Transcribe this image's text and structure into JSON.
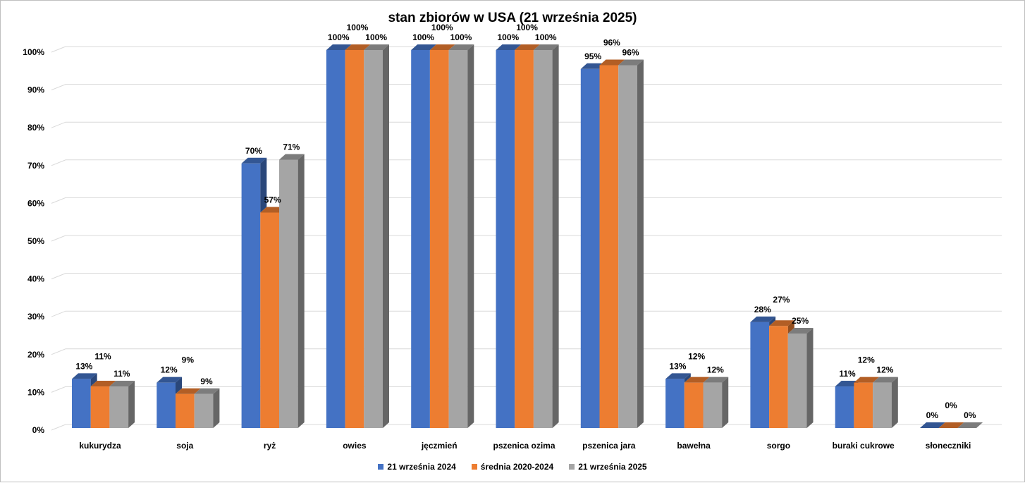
{
  "chart_data": {
    "type": "bar",
    "title": "stan zbiorów w USA (21 września 2025)",
    "categories": [
      "kukurydza",
      "soja",
      "ryż",
      "owies",
      "jęczmień",
      "pszenica ozima",
      "pszenica jara",
      "bawełna",
      "sorgo",
      "buraki cukrowe",
      "słoneczniki"
    ],
    "series": [
      {
        "name": "21 września 2024",
        "color": "#4472c4",
        "values": [
          13,
          12,
          70,
          100,
          100,
          100,
          95,
          13,
          28,
          11,
          0
        ]
      },
      {
        "name": "średnia 2020-2024",
        "color": "#ed7d31",
        "values": [
          11,
          9,
          57,
          100,
          100,
          100,
          96,
          12,
          27,
          12,
          0
        ]
      },
      {
        "name": "21 września 2025",
        "color": "#a5a5a5",
        "values": [
          11,
          9,
          71,
          100,
          100,
          100,
          96,
          12,
          25,
          12,
          0
        ]
      }
    ],
    "ylim": [
      0,
      100
    ],
    "yticks": [
      "0%",
      "10%",
      "20%",
      "30%",
      "40%",
      "50%",
      "60%",
      "70%",
      "80%",
      "90%",
      "100%"
    ],
    "grid": true,
    "style": "3d-clustered-column",
    "legend_position": "bottom"
  }
}
